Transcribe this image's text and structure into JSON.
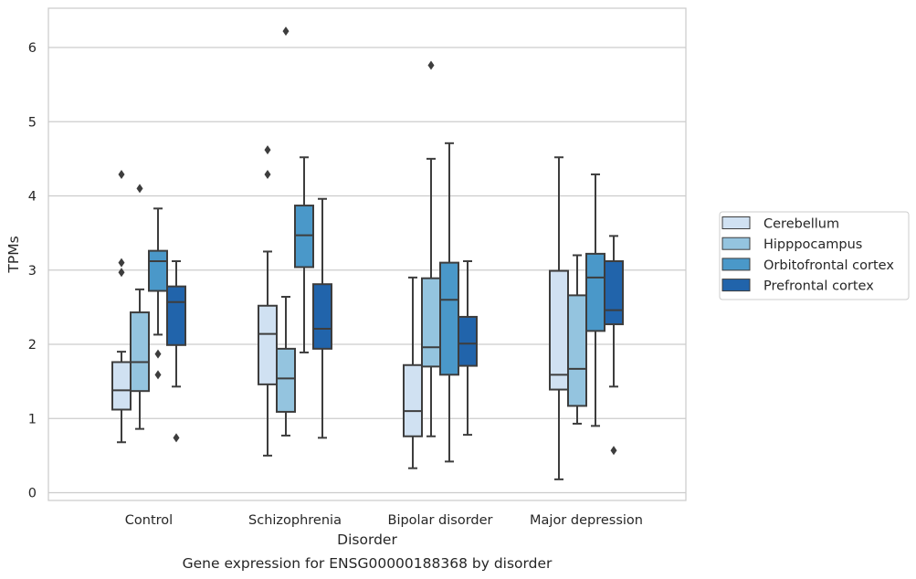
{
  "chart_data": {
    "type": "box",
    "caption": "Gene expression for ENSG00000188368 by disorder",
    "xlabel": "Disorder",
    "ylabel": "TPMs",
    "ylim": [
      -0.1,
      6.55
    ],
    "yticks": [
      0,
      1,
      2,
      3,
      4,
      5,
      6
    ],
    "grid": "horizontal",
    "legend_position": "right",
    "categories": [
      "Control",
      "Schizophrenia",
      "Bipolar disorder",
      "Major depression"
    ],
    "series": [
      {
        "name": "Cerebellum",
        "color": "#d0e1f2",
        "boxes": [
          {
            "whislo": 0.68,
            "q1": 1.12,
            "med": 1.38,
            "q3": 1.76,
            "whishi": 1.9,
            "fliers": [
              2.97,
              3.1,
              4.29
            ]
          },
          {
            "whislo": 0.5,
            "q1": 1.46,
            "med": 2.14,
            "q3": 2.52,
            "whishi": 3.25,
            "fliers": [
              4.29,
              4.62
            ]
          },
          {
            "whislo": 0.33,
            "q1": 0.76,
            "med": 1.1,
            "q3": 1.72,
            "whishi": 2.9,
            "fliers": []
          },
          {
            "whislo": 0.18,
            "q1": 1.39,
            "med": 1.59,
            "q3": 2.99,
            "whishi": 4.52,
            "fliers": []
          }
        ]
      },
      {
        "name": "Hipppocampus",
        "color": "#94c4df",
        "boxes": [
          {
            "whislo": 0.86,
            "q1": 1.37,
            "med": 1.76,
            "q3": 2.43,
            "whishi": 2.74,
            "fliers": [
              4.1
            ]
          },
          {
            "whislo": 0.77,
            "q1": 1.09,
            "med": 1.54,
            "q3": 1.94,
            "whishi": 2.64,
            "fliers": [
              6.22
            ]
          },
          {
            "whislo": 0.76,
            "q1": 1.7,
            "med": 1.96,
            "q3": 2.89,
            "whishi": 4.5,
            "fliers": [
              5.76
            ]
          },
          {
            "whislo": 0.93,
            "q1": 1.17,
            "med": 1.67,
            "q3": 2.66,
            "whishi": 3.2,
            "fliers": []
          }
        ]
      },
      {
        "name": "Orbitofrontal cortex",
        "color": "#4a98c9",
        "boxes": [
          {
            "whislo": 2.13,
            "q1": 2.72,
            "med": 3.12,
            "q3": 3.26,
            "whishi": 3.83,
            "fliers": [
              1.59,
              1.87
            ]
          },
          {
            "whislo": 1.89,
            "q1": 3.04,
            "med": 3.47,
            "q3": 3.87,
            "whishi": 4.52,
            "fliers": []
          },
          {
            "whislo": 0.42,
            "q1": 1.59,
            "med": 2.6,
            "q3": 3.1,
            "whishi": 4.71,
            "fliers": []
          },
          {
            "whislo": 0.9,
            "q1": 2.18,
            "med": 2.9,
            "q3": 3.22,
            "whishi": 4.29,
            "fliers": []
          }
        ]
      },
      {
        "name": "Prefrontal cortex",
        "color": "#2164ab",
        "boxes": [
          {
            "whislo": 1.43,
            "q1": 1.99,
            "med": 2.57,
            "q3": 2.78,
            "whishi": 3.12,
            "fliers": [
              0.74
            ]
          },
          {
            "whislo": 0.74,
            "q1": 1.94,
            "med": 2.21,
            "q3": 2.81,
            "whishi": 3.96,
            "fliers": []
          },
          {
            "whislo": 0.78,
            "q1": 1.71,
            "med": 2.01,
            "q3": 2.37,
            "whishi": 3.12,
            "fliers": []
          },
          {
            "whislo": 1.43,
            "q1": 2.27,
            "med": 2.46,
            "q3": 3.12,
            "whishi": 3.46,
            "fliers": [
              0.57
            ]
          }
        ]
      }
    ]
  }
}
